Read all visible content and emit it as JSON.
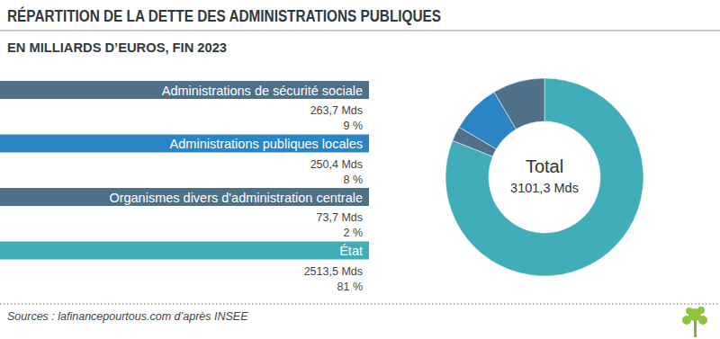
{
  "chart_data": {
    "type": "pie",
    "title": "RÉPARTITION DE LA DETTE DES ADMINISTRATIONS PUBLIQUES",
    "subtitle": "EN MILLIARDS D’EUROS, FIN 2023",
    "categories": [
      "Administrations de sécurité sociale",
      "Administrations publiques locales",
      "Organismes divers d'administration centrale",
      "État"
    ],
    "values": [
      263.7,
      250.4,
      73.7,
      2513.5
    ],
    "value_labels": [
      "263,7 Mds",
      "250,4 Mds",
      "73,7 Mds",
      "2513,5 Mds"
    ],
    "shares": [
      9,
      8,
      2,
      81
    ],
    "share_labels": [
      "9 %",
      "8 %",
      "2 %",
      "81 %"
    ],
    "colors": [
      "#4e7089",
      "#2b84c3",
      "#4e7089",
      "#41adb8"
    ],
    "total": {
      "label": "Total",
      "value": 3101.3,
      "value_label": "3101,3 Mds"
    },
    "data_labels": true,
    "source": "Sources : lafinancepourtous.com d’après INSEE"
  }
}
